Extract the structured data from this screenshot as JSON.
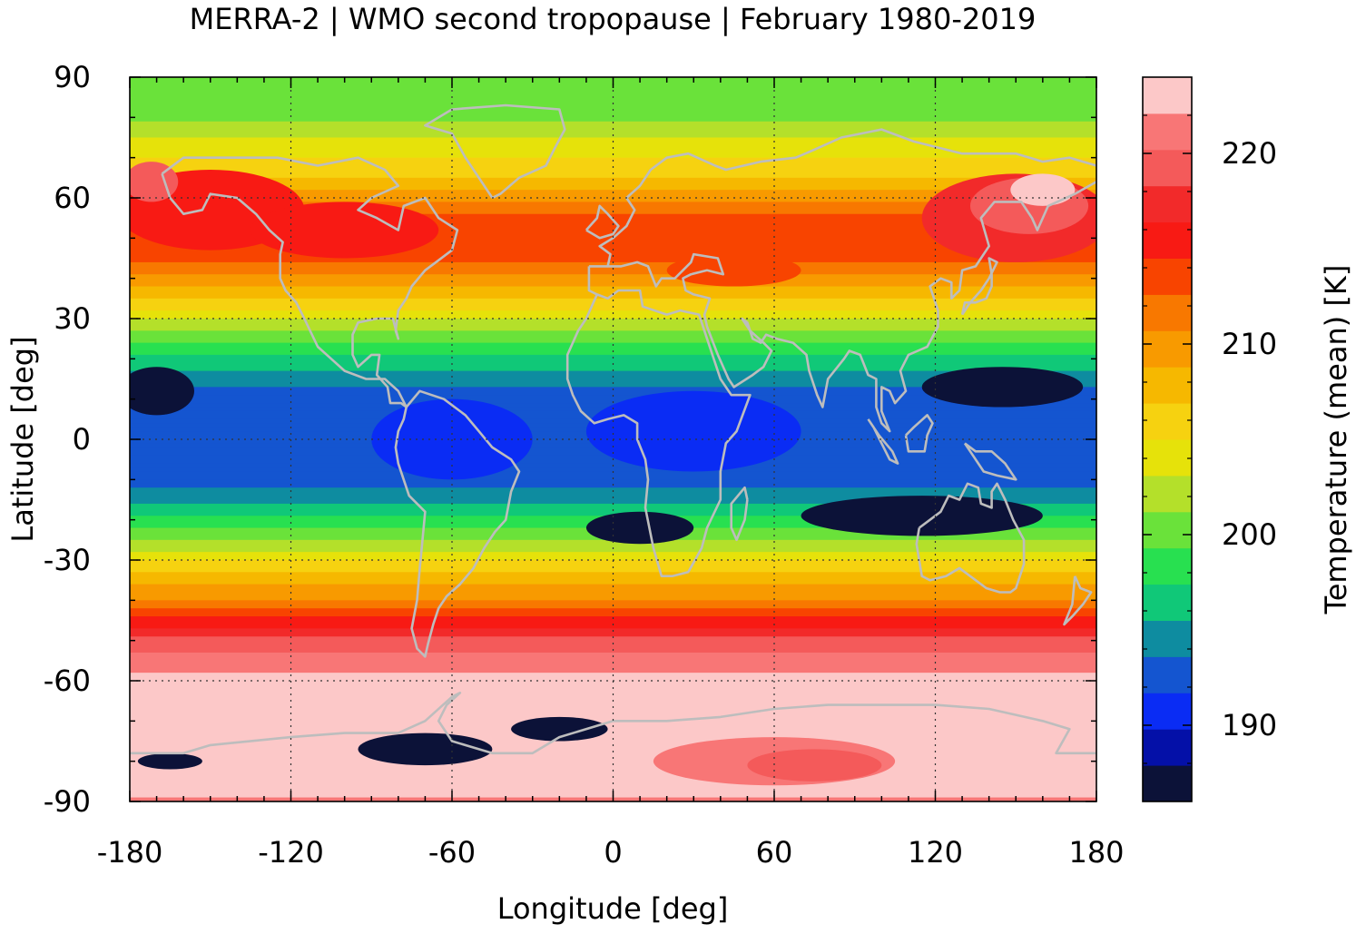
{
  "chart_data": {
    "type": "heatmap",
    "title": "MERRA-2 | WMO second tropopause | February 1980-2019",
    "xlabel": "Longitude [deg]",
    "ylabel": "Latitude [deg]",
    "xlim": [
      -180,
      180
    ],
    "ylim": [
      -90,
      90
    ],
    "xticks": [
      -180,
      -120,
      -60,
      0,
      60,
      120,
      180
    ],
    "yticks": [
      90,
      60,
      30,
      0,
      -30,
      -60,
      -90
    ],
    "x_tick_labels": [
      "-180",
      "-120",
      "-60",
      "0",
      "60",
      "120",
      "180"
    ],
    "y_tick_labels": [
      "90",
      "60",
      "30",
      "0",
      "-30",
      "-60",
      "-90"
    ],
    "grid": true,
    "colorbar": {
      "label": "Temperature (mean) [K]",
      "range": [
        186,
        224
      ],
      "ticks": [
        190,
        200,
        210,
        220
      ],
      "tick_labels": [
        "190",
        "200",
        "210",
        "220"
      ],
      "placement": "right",
      "colors": [
        "#0c1238",
        "#0410a8",
        "#0a2cf4",
        "#1455d0",
        "#0e8ca0",
        "#10c878",
        "#28e050",
        "#6ae23a",
        "#b4e02a",
        "#e6e20a",
        "#f6d210",
        "#f6b800",
        "#f89a00",
        "#f87800",
        "#f84400",
        "#f81a14",
        "#f22a2a",
        "#f45a5a",
        "#f87676",
        "#fcc8c8"
      ]
    },
    "zonal_mean_profile": {
      "latitude": [
        -90,
        -80,
        -70,
        -60,
        -55,
        -50,
        -45,
        -40,
        -35,
        -30,
        -25,
        -20,
        -15,
        -10,
        -5,
        0,
        5,
        10,
        15,
        20,
        25,
        30,
        35,
        40,
        45,
        50,
        55,
        60,
        65,
        70,
        75,
        80,
        85,
        90
      ],
      "temperature_K": [
        222,
        223,
        223,
        223,
        221,
        219,
        215,
        211,
        208,
        205,
        201,
        198,
        195,
        193,
        192,
        192,
        192,
        193,
        194,
        197,
        200,
        203,
        207,
        210,
        213,
        214,
        213,
        210,
        207,
        205,
        203,
        201,
        200,
        200
      ]
    }
  }
}
